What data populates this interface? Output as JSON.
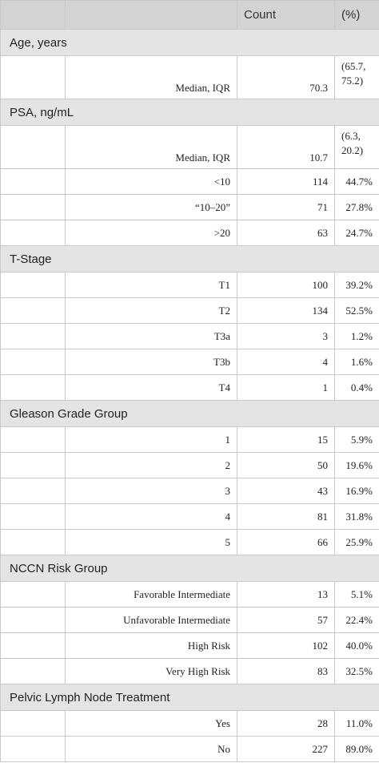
{
  "header": {
    "blank1": "",
    "blank2": "",
    "count": "Count",
    "pct": "(%)"
  },
  "sections": [
    {
      "title": "Age, years",
      "rows": [
        {
          "label": "Median, IQR",
          "count": "70.3",
          "pct": "(65.7, 75.2)",
          "tall": true
        }
      ]
    },
    {
      "title": "PSA, ng/mL",
      "rows": [
        {
          "label": "Median, IQR",
          "count": "10.7",
          "pct": "(6.3, 20.2)",
          "tall": true
        },
        {
          "label": "<10",
          "count": "114",
          "pct": "44.7%"
        },
        {
          "label": "“10–20”",
          "count": "71",
          "pct": "27.8%"
        },
        {
          "label": ">20",
          "count": "63",
          "pct": "24.7%"
        }
      ]
    },
    {
      "title": "T-Stage",
      "rows": [
        {
          "label": "T1",
          "count": "100",
          "pct": "39.2%"
        },
        {
          "label": "T2",
          "count": "134",
          "pct": "52.5%"
        },
        {
          "label": "T3a",
          "count": "3",
          "pct": "1.2%"
        },
        {
          "label": "T3b",
          "count": "4",
          "pct": "1.6%"
        },
        {
          "label": "T4",
          "count": "1",
          "pct": "0.4%"
        }
      ]
    },
    {
      "title": "Gleason Grade Group",
      "rows": [
        {
          "label": "1",
          "count": "15",
          "pct": "5.9%"
        },
        {
          "label": "2",
          "count": "50",
          "pct": "19.6%"
        },
        {
          "label": "3",
          "count": "43",
          "pct": "16.9%"
        },
        {
          "label": "4",
          "count": "81",
          "pct": "31.8%"
        },
        {
          "label": "5",
          "count": "66",
          "pct": "25.9%"
        }
      ]
    },
    {
      "title": "NCCN Risk Group",
      "rows": [
        {
          "label": "Favorable Intermediate",
          "count": "13",
          "pct": "5.1%"
        },
        {
          "label": "Unfavorable Intermediate",
          "count": "57",
          "pct": "22.4%"
        },
        {
          "label": "High Risk",
          "count": "102",
          "pct": "40.0%"
        },
        {
          "label": "Very High Risk",
          "count": "83",
          "pct": "32.5%"
        }
      ]
    },
    {
      "title": "Pelvic Lymph Node Treatment",
      "rows": [
        {
          "label": "Yes",
          "count": "28",
          "pct": "11.0%"
        },
        {
          "label": "No",
          "count": "227",
          "pct": "89.0%"
        }
      ]
    }
  ]
}
